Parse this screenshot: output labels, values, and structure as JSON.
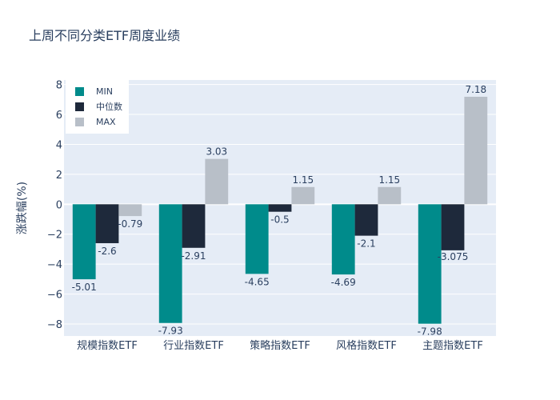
{
  "chart_data": {
    "type": "bar",
    "title": "上周不同分类ETF周度业绩",
    "xlabel": "",
    "ylabel": "涨跌幅(%)",
    "ylim": [
      -8.8,
      8.3
    ],
    "yticks": [
      8,
      6,
      4,
      2,
      0,
      -2,
      -4,
      -6,
      -8
    ],
    "ytick_labels": [
      "8",
      "6",
      "4",
      "2",
      "0",
      "−2",
      "−4",
      "−6",
      "−8"
    ],
    "categories": [
      "规模指数ETF",
      "行业指数ETF",
      "策略指数ETF",
      "风格指数ETF",
      "主题指数ETF"
    ],
    "series": [
      {
        "name": "MIN",
        "color": "#008b8b",
        "values": [
          -5.01,
          -7.93,
          -4.65,
          -4.69,
          -7.98
        ],
        "labels": [
          "-5.01",
          "-7.93",
          "-4.65",
          "-4.69",
          "-7.98"
        ]
      },
      {
        "name": "中位数",
        "color": "#1e293b",
        "values": [
          -2.6,
          -2.91,
          -0.5,
          -2.1,
          -3.075
        ],
        "labels": [
          "-2.6",
          "-2.91",
          "-0.5",
          "-2.1",
          "-3.075"
        ]
      },
      {
        "name": "MAX",
        "color": "#b8bfc8",
        "values": [
          -0.79,
          3.03,
          1.15,
          1.15,
          7.18
        ],
        "labels": [
          "-0.79",
          "3.03",
          "1.15",
          "1.15",
          "7.18"
        ]
      }
    ],
    "grid": true,
    "legend_position": "top-left",
    "plot_bgcolor": "#e5ecf6"
  }
}
